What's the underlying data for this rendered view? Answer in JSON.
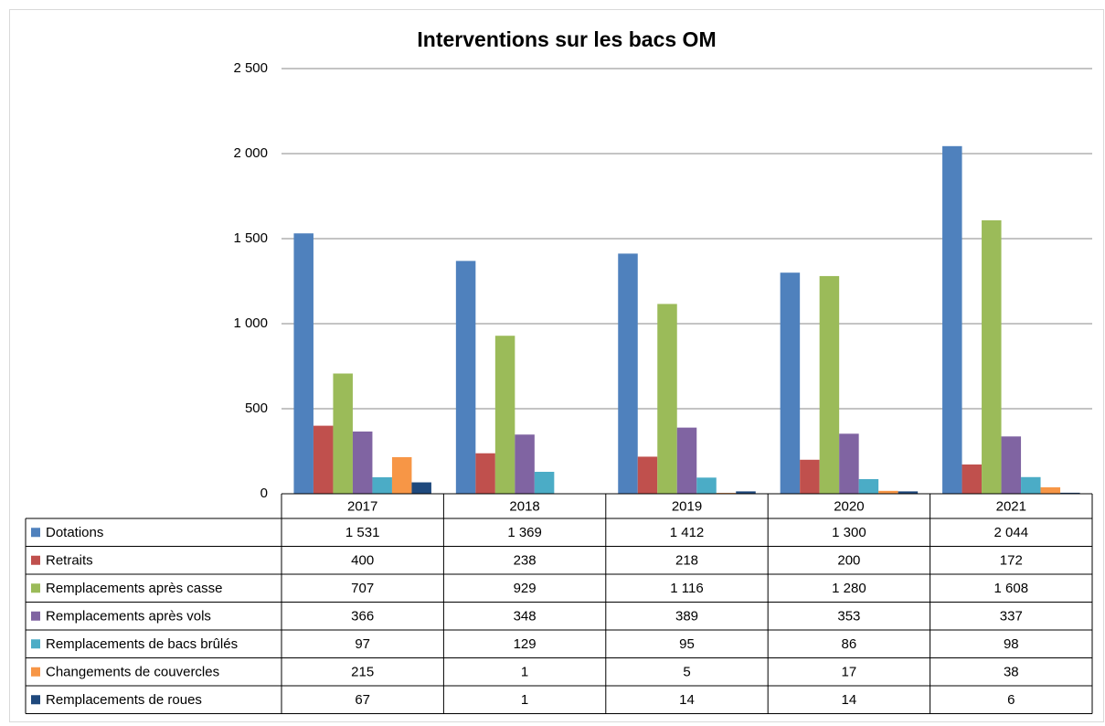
{
  "chart_data": {
    "type": "bar",
    "title": "Interventions sur les bacs OM",
    "categories": [
      "2017",
      "2018",
      "2019",
      "2020",
      "2021"
    ],
    "ylim": [
      0,
      2500
    ],
    "yticks": [
      0,
      500,
      {
        "value": 1000,
        "label": "1 000"
      },
      {
        "value": 1500,
        "label": "1 500"
      },
      {
        "value": 2000,
        "label": "2 000"
      },
      {
        "value": 2500,
        "label": "2 500"
      }
    ],
    "grid": true,
    "series": [
      {
        "name": "Dotations",
        "color": "#4f81bd",
        "values": [
          1531,
          1369,
          1412,
          1300,
          2044
        ],
        "value_labels": [
          "1 531",
          "1 369",
          "1 412",
          "1 300",
          "2 044"
        ]
      },
      {
        "name": "Retraits",
        "color": "#c0504d",
        "values": [
          400,
          238,
          218,
          200,
          172
        ],
        "value_labels": [
          "400",
          "238",
          "218",
          "200",
          "172"
        ]
      },
      {
        "name": "Remplacements après casse",
        "color": "#9bbb59",
        "values": [
          707,
          929,
          1116,
          1280,
          1608
        ],
        "value_labels": [
          "707",
          "929",
          "1 116",
          "1 280",
          "1 608"
        ]
      },
      {
        "name": "Remplacements après vols",
        "color": "#8064a2",
        "values": [
          366,
          348,
          389,
          353,
          337
        ],
        "value_labels": [
          "366",
          "348",
          "389",
          "353",
          "337"
        ]
      },
      {
        "name": "Remplacements de bacs brûlés",
        "color": "#4bacc6",
        "values": [
          97,
          129,
          95,
          86,
          98
        ],
        "value_labels": [
          "97",
          "129",
          "95",
          "86",
          "98"
        ]
      },
      {
        "name": "Changements de couvercles",
        "color": "#f79646",
        "values": [
          215,
          1,
          5,
          17,
          38
        ],
        "value_labels": [
          "215",
          "1",
          "5",
          "17",
          "38"
        ]
      },
      {
        "name": "Remplacements de roues",
        "color": "#1f497d",
        "values": [
          67,
          1,
          14,
          14,
          6
        ],
        "value_labels": [
          "67",
          "1",
          "14",
          "14",
          "6"
        ]
      }
    ]
  }
}
